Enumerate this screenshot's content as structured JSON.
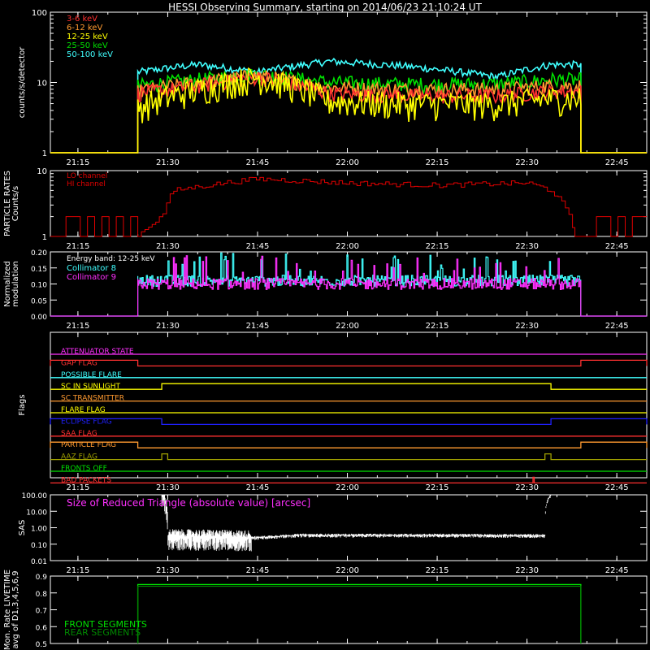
{
  "title": "HESSI Observing Summary, starting on 2014/06/23 21:10:24 UT",
  "time_ticks": [
    "21:15",
    "21:30",
    "21:45",
    "22:00",
    "22:15",
    "22:30",
    "22:45"
  ],
  "colors": {
    "c3_6": "#ff3030",
    "c6_12": "#ff9a30",
    "c12_25": "#ffff00",
    "c25_50": "#00e000",
    "c50_100": "#40ffff",
    "particle": "#e00000",
    "coll8": "#40ffff",
    "coll9": "#ff30ff",
    "sas": "#ff30ff",
    "front": "#00e000",
    "rear": "#008800"
  },
  "chart_data": [
    {
      "type": "line",
      "ylabel": "counts/s/detector",
      "yscale": "log",
      "ylim": [
        1,
        100
      ],
      "ytick_labels": [
        "1",
        "10",
        "100"
      ],
      "legend": [
        "3-6 keV",
        "6-12 keV",
        "12-25 keV",
        "25-50 keV",
        "50-100 keV"
      ],
      "x": [
        "21:10",
        "21:25",
        "21:35",
        "21:45",
        "21:57",
        "22:10",
        "22:25",
        "22:34",
        "22:39",
        "22:50"
      ],
      "series": [
        {
          "name": "3-6 keV",
          "values": [
            0,
            7,
            9,
            12,
            7,
            6.5,
            6.5,
            7.5,
            7.5,
            0
          ]
        },
        {
          "name": "6-12 keV",
          "values": [
            0,
            7.5,
            10,
            12.5,
            8.5,
            8,
            8,
            9,
            9,
            0
          ]
        },
        {
          "name": "12-25 keV",
          "values": [
            0,
            4.5,
            8,
            12,
            5.5,
            5,
            5,
            6,
            6,
            0
          ]
        },
        {
          "name": "25-50 keV",
          "values": [
            0,
            9,
            11,
            13,
            10,
            9.5,
            9.5,
            11,
            11,
            0
          ]
        },
        {
          "name": "50-100 keV",
          "values": [
            0,
            14,
            18,
            14,
            20,
            17,
            12,
            18,
            18,
            0
          ]
        }
      ],
      "active_range": [
        "21:25",
        "22:39"
      ]
    },
    {
      "type": "line",
      "ylabel": "PARTICLE RATES Counts/s",
      "yscale": "log",
      "ylim": [
        1,
        10
      ],
      "ytick_labels": [
        "1",
        "10"
      ],
      "legend": [
        "LO channel",
        "HI channel"
      ],
      "x": [
        "21:25",
        "21:29",
        "21:31",
        "21:45",
        "22:00",
        "22:15",
        "22:30",
        "22:34",
        "22:38"
      ],
      "series": [
        {
          "name": "LO channel",
          "values": [
            1,
            2,
            5,
            7.5,
            6.5,
            6,
            6.5,
            5,
            1
          ]
        }
      ]
    },
    {
      "type": "line",
      "ylabel": "Normalized modulation",
      "ylim": [
        0,
        0.2
      ],
      "ytick_labels": [
        "0.00",
        "0.05",
        "0.10",
        "0.15",
        "0.20"
      ],
      "legend_title": "Energy band: 12-25 keV",
      "legend": [
        "Collimator 8",
        "Collimator 9"
      ],
      "series": [
        {
          "name": "Collimator 8",
          "values": [
            0.11,
            0.19
          ]
        },
        {
          "name": "Collimator 9",
          "values": [
            0.1,
            0.18
          ]
        }
      ],
      "active_range": [
        "21:25",
        "22:39"
      ]
    },
    {
      "type": "line",
      "ylabel": "Flags",
      "flags": [
        {
          "name": "ATTENUATOR STATE",
          "color": "#ff30ff",
          "high": []
        },
        {
          "name": "GAP FLAG",
          "color": "#ff3030",
          "high": [
            [
              "21:10",
              "21:25"
            ],
            [
              "22:39",
              "22:50"
            ]
          ]
        },
        {
          "name": "POSSIBLE FLARE",
          "color": "#40ffff",
          "high": []
        },
        {
          "name": "SC IN SUNLIGHT",
          "color": "#ffff00",
          "high": [
            [
              "21:29",
              "22:34"
            ]
          ]
        },
        {
          "name": "SC TRANSMITTER",
          "color": "#ff9a30",
          "high": []
        },
        {
          "name": "FLARE FLAG",
          "color": "#ffff00",
          "high": []
        },
        {
          "name": "ECLIPSE FLAG",
          "color": "#2020ff",
          "high": [
            [
              "21:10",
              "21:29"
            ],
            [
              "22:34",
              "22:50"
            ]
          ]
        },
        {
          "name": "SAA FLAG",
          "color": "#ff3030",
          "high": []
        },
        {
          "name": "PARTICLE FLAG",
          "color": "#ff9a30",
          "high": [
            [
              "21:10",
              "21:25"
            ],
            [
              "22:39",
              "22:50"
            ]
          ]
        },
        {
          "name": "AAZ FLAG",
          "color": "#a0a000",
          "high": [
            [
              "21:29",
              "21:30"
            ],
            [
              "22:33",
              "22:34"
            ]
          ]
        },
        {
          "name": "FRONTS OFF",
          "color": "#00e000",
          "high": []
        },
        {
          "name": "BAD PACKETS",
          "color": "#ff3030",
          "high": [
            [
              "22:31",
              "22:31"
            ]
          ]
        }
      ]
    },
    {
      "type": "line",
      "ylabel": "SAS",
      "yscale": "log",
      "ylim": [
        0.01,
        100
      ],
      "ytick_labels": [
        "0.01",
        "0.10",
        "1.00",
        "10.00",
        "100.00"
      ],
      "annotation": "Size of Reduced Triangle (absolute value) [arcsec]",
      "x": [
        "21:29",
        "21:30",
        "21:45",
        "21:52",
        "22:15",
        "22:33",
        "22:34"
      ],
      "values": [
        100,
        0.3,
        0.25,
        0.35,
        0.35,
        0.33,
        100
      ]
    },
    {
      "type": "line",
      "ylabel": "Mon. Rate LIVETIME avg of D1,3,4,5,6,9",
      "ylim": [
        0.5,
        0.9
      ],
      "ytick_labels": [
        "0.5",
        "0.6",
        "0.7",
        "0.8",
        "0.9"
      ],
      "legend": [
        "FRONT SEGMENTS",
        "REAR SEGMENTS"
      ],
      "series": [
        {
          "name": "FRONT SEGMENTS",
          "values": [
            0.85
          ]
        },
        {
          "name": "REAR SEGMENTS",
          "values": [
            0.84
          ]
        }
      ],
      "active_range": [
        "21:25",
        "22:39"
      ]
    }
  ]
}
